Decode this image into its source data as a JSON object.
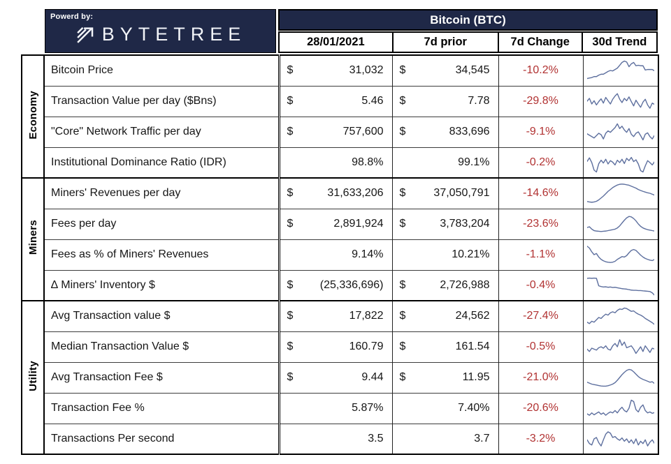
{
  "header": {
    "powered_by": "Powerd by:",
    "brand": "BYTETREE"
  },
  "colors": {
    "navy": "#1f2847",
    "red": "#b13232",
    "sparkline": "#5d6f9e"
  },
  "chart_data": {
    "type": "table",
    "title": "Bitcoin (BTC)",
    "columns": [
      "28/01/2021",
      "7d prior",
      "7d Change",
      "30d Trend"
    ],
    "sections": [
      {
        "label": "Economy",
        "rows": [
          {
            "label": "Bitcoin Price",
            "cur_sym": "$",
            "current": "31,032",
            "prior_sym": "$",
            "prior": "34,545",
            "change": "-10.2%",
            "trend": [
              16,
              18,
              20,
              24,
              24,
              30,
              34,
              34,
              40,
              46,
              50,
              48,
              54,
              60,
              72,
              84,
              90,
              86,
              66,
              78,
              84,
              70,
              72,
              70,
              70,
              52,
              54,
              54,
              54,
              48
            ]
          },
          {
            "label": "Transaction Value per day ($Bns)",
            "cur_sym": "$",
            "current": "5.46",
            "prior_sym": "$",
            "prior": "7.78",
            "change": "-29.8%",
            "trend": [
              50,
              62,
              38,
              52,
              34,
              48,
              60,
              42,
              66,
              52,
              38,
              58,
              72,
              82,
              58,
              44,
              62,
              52,
              68,
              48,
              30,
              54,
              38,
              24,
              46,
              58,
              34,
              20,
              42,
              36
            ]
          },
          {
            "label": "\"Core\" Network Traffic per day",
            "cur_sym": "$",
            "current": "757,600",
            "prior_sym": "$",
            "prior": "833,696",
            "change": "-9.1%",
            "trend": [
              42,
              36,
              30,
              24,
              34,
              44,
              38,
              20,
              44,
              54,
              48,
              58,
              68,
              84,
              64,
              74,
              58,
              48,
              64,
              40,
              30,
              44,
              50,
              34,
              16,
              40,
              46,
              30,
              20,
              36
            ]
          },
          {
            "label": "Institutional Dominance Ratio (IDR)",
            "cur_sym": "",
            "current": "98.8%",
            "prior_sym": "",
            "prior": "99.1%",
            "change": "-0.2%",
            "trend": [
              55,
              70,
              50,
              18,
              10,
              45,
              60,
              48,
              64,
              44,
              58,
              52,
              40,
              60,
              50,
              64,
              46,
              68,
              58,
              72,
              54,
              62,
              44,
              16,
              10,
              36,
              58,
              50,
              40,
              54
            ]
          }
        ]
      },
      {
        "label": "Miners",
        "rows": [
          {
            "label": "Miners' Revenues per day",
            "cur_sym": "$",
            "current": "31,633,206",
            "prior_sym": "$",
            "prior": "37,050,791",
            "change": "-14.6%",
            "trend": [
              15,
              13,
              12,
              13,
              16,
              22,
              30,
              38,
              48,
              58,
              66,
              74,
              80,
              85,
              88,
              89,
              88,
              86,
              84,
              80,
              76,
              72,
              66,
              62,
              58,
              55,
              52,
              50,
              46,
              42
            ]
          },
          {
            "label": "Fees per day",
            "cur_sym": "$",
            "current": "2,891,924",
            "prior_sym": "$",
            "prior": "3,783,204",
            "change": "-23.6%",
            "trend": [
              35,
              38,
              28,
              22,
              20,
              19,
              18,
              19,
              20,
              22,
              24,
              26,
              28,
              33,
              42,
              54,
              66,
              76,
              82,
              80,
              73,
              63,
              50,
              40,
              33,
              29,
              26,
              24,
              22,
              20
            ]
          },
          {
            "label": "Fees as % of Miners' Revenues",
            "cur_sym": "",
            "current": "9.14%",
            "prior_sym": "",
            "prior": "10.21%",
            "change": "-1.1%",
            "trend": [
              86,
              78,
              62,
              50,
              55,
              40,
              30,
              24,
              20,
              18,
              17,
              18,
              22,
              30,
              36,
              42,
              40,
              46,
              58,
              68,
              72,
              68,
              58,
              48,
              40,
              34,
              30,
              27,
              25,
              30
            ]
          },
          {
            "label": "∆ Miners' Inventory $",
            "cur_sym": "$",
            "current": "(25,336,696)",
            "prior_sym": "$",
            "prior": "2,726,988",
            "change": "-0.4%",
            "trend": [
              80,
              81,
              80,
              81,
              80,
              48,
              45,
              43,
              44,
              42,
              43,
              41,
              42,
              40,
              38,
              36,
              35,
              34,
              32,
              30,
              29,
              29,
              28,
              28,
              27,
              26,
              25,
              24,
              18,
              8
            ]
          }
        ]
      },
      {
        "label": "Utility",
        "rows": [
          {
            "label": "Avg Transaction value $",
            "cur_sym": "$",
            "current": "17,822",
            "prior_sym": "$",
            "prior": "24,562",
            "change": "-27.4%",
            "trend": [
              24,
              18,
              28,
              24,
              34,
              44,
              40,
              50,
              58,
              54,
              64,
              68,
              64,
              74,
              80,
              78,
              84,
              82,
              76,
              70,
              72,
              64,
              58,
              54,
              48,
              40,
              34,
              28,
              22,
              14
            ]
          },
          {
            "label": "Median Transaction Value $",
            "cur_sym": "$",
            "current": "160.79",
            "prior_sym": "$",
            "prior": "161.54",
            "change": "-0.5%",
            "trend": [
              40,
              30,
              44,
              40,
              36,
              46,
              50,
              44,
              54,
              40,
              36,
              54,
              64,
              50,
              80,
              56,
              70,
              46,
              50,
              54,
              40,
              22,
              36,
              50,
              30,
              54,
              40,
              26,
              44,
              40
            ]
          },
          {
            "label": "Avg Transaction Fee $",
            "cur_sym": "$",
            "current": "9.44",
            "prior_sym": "$",
            "prior": "11.95",
            "change": "-21.0%",
            "trend": [
              30,
              26,
              22,
              20,
              18,
              16,
              14,
              13,
              13,
              15,
              18,
              22,
              28,
              38,
              50,
              62,
              72,
              80,
              84,
              82,
              74,
              64,
              54,
              47,
              42,
              38,
              34,
              30,
              32,
              24
            ]
          },
          {
            "label": "Transaction Fee %",
            "cur_sym": "",
            "current": "5.87%",
            "prior_sym": "",
            "prior": "7.40%",
            "change": "-20.6%",
            "trend": [
              26,
              20,
              30,
              22,
              28,
              34,
              24,
              30,
              20,
              28,
              34,
              30,
              40,
              30,
              44,
              54,
              40,
              34,
              50,
              84,
              78,
              44,
              34,
              54,
              64,
              40,
              30,
              34,
              28,
              32
            ]
          },
          {
            "label": "Transactions Per second",
            "cur_sym": "",
            "current": "3.5",
            "prior_sym": "",
            "prior": "3.7",
            "change": "-3.2%",
            "trend": [
              46,
              30,
              24,
              50,
              56,
              34,
              20,
              46,
              70,
              80,
              74,
              56,
              60,
              50,
              44,
              54,
              40,
              50,
              34,
              46,
              30,
              50,
              24,
              40,
              30,
              46,
              20,
              36,
              46,
              30
            ]
          }
        ]
      }
    ]
  }
}
